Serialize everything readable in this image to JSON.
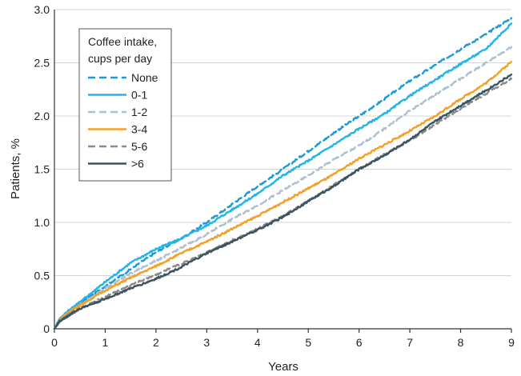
{
  "chart_data": {
    "type": "line",
    "xlabel": "Years",
    "ylabel": "Patients, %",
    "xlim": [
      0,
      9
    ],
    "ylim": [
      0,
      3.0
    ],
    "x_ticks": [
      "0",
      "1",
      "2",
      "3",
      "4",
      "5",
      "6",
      "7",
      "8",
      "9"
    ],
    "y_ticks": [
      "0",
      "0.5",
      "1.0",
      "1.5",
      "2.0",
      "2.5",
      "3.0"
    ],
    "grid": "horizontal",
    "legend": {
      "title_line1": "Coffee intake,",
      "title_line2": "cups per day",
      "placement": "top-left"
    },
    "x": [
      0,
      0.1,
      0.3,
      0.5,
      1,
      1.5,
      2,
      2.5,
      3,
      3.5,
      4,
      4.5,
      5,
      5.5,
      6,
      6.5,
      7,
      7.5,
      8,
      8.5,
      9
    ],
    "series": [
      {
        "name": "None",
        "color": "#1a9ad6",
        "dash": "dashed",
        "values": [
          0,
          0.09,
          0.17,
          0.24,
          0.4,
          0.56,
          0.72,
          0.85,
          1.0,
          1.17,
          1.34,
          1.5,
          1.67,
          1.84,
          2.0,
          2.16,
          2.33,
          2.48,
          2.63,
          2.77,
          2.92
        ]
      },
      {
        "name": "0-1",
        "color": "#22b5ea",
        "dash": "solid",
        "values": [
          0,
          0.09,
          0.18,
          0.25,
          0.44,
          0.62,
          0.75,
          0.85,
          0.97,
          1.12,
          1.27,
          1.44,
          1.58,
          1.73,
          1.88,
          2.02,
          2.19,
          2.34,
          2.49,
          2.63,
          2.87
        ]
      },
      {
        "name": "1-2",
        "color": "#aebfd0",
        "dash": "dashed",
        "values": [
          0,
          0.08,
          0.16,
          0.22,
          0.38,
          0.52,
          0.64,
          0.76,
          0.89,
          1.03,
          1.16,
          1.3,
          1.44,
          1.59,
          1.72,
          1.88,
          2.05,
          2.2,
          2.35,
          2.5,
          2.65
        ]
      },
      {
        "name": "3-4",
        "color": "#f5a024",
        "dash": "solid",
        "values": [
          0,
          0.08,
          0.16,
          0.22,
          0.36,
          0.48,
          0.59,
          0.71,
          0.82,
          0.94,
          1.06,
          1.19,
          1.32,
          1.45,
          1.6,
          1.73,
          1.86,
          2.0,
          2.16,
          2.31,
          2.51
        ]
      },
      {
        "name": "5-6",
        "color": "#8a8a8a",
        "dash": "dashed",
        "values": [
          0,
          0.07,
          0.14,
          0.19,
          0.3,
          0.41,
          0.51,
          0.61,
          0.72,
          0.83,
          0.94,
          1.06,
          1.2,
          1.35,
          1.5,
          1.64,
          1.77,
          1.92,
          2.07,
          2.21,
          2.35
        ]
      },
      {
        "name": ">6",
        "color": "#3a5462",
        "dash": "solid",
        "values": [
          0,
          0.07,
          0.13,
          0.19,
          0.28,
          0.38,
          0.47,
          0.58,
          0.71,
          0.82,
          0.93,
          1.05,
          1.2,
          1.34,
          1.5,
          1.63,
          1.78,
          1.95,
          2.1,
          2.24,
          2.39
        ]
      }
    ]
  }
}
